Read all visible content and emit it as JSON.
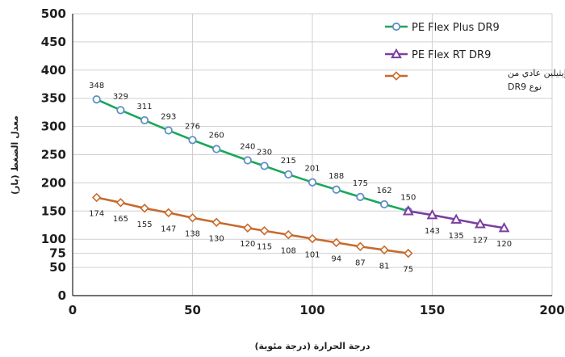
{
  "chart_data": {
    "type": "line",
    "xlabel": "درجة الحرارة (درجة مئوية)",
    "ylabel": "معدل الضغط (بار)",
    "xlim": [
      0,
      200
    ],
    "ylim": [
      0,
      500
    ],
    "xticks": [
      0,
      50,
      100,
      150,
      200
    ],
    "yticks": [
      0,
      50,
      75,
      100,
      150,
      200,
      250,
      300,
      350,
      400,
      450,
      500
    ],
    "grid": true,
    "legend_position": "top-right",
    "series": [
      {
        "name": "PE Flex Plus DR9",
        "color": "#1aa75a",
        "marker": "circle",
        "marker_color": "#5f8fc6",
        "x": [
          10,
          20,
          30,
          40,
          50,
          60,
          73,
          80,
          90,
          100,
          110,
          120,
          130,
          140
        ],
        "y": [
          348,
          329,
          311,
          293,
          276,
          260,
          240,
          230,
          215,
          201,
          188,
          175,
          162,
          150
        ],
        "labels": [
          "348",
          "329",
          "311",
          "293",
          "276",
          "260",
          "240",
          "230",
          "215",
          "201",
          "188",
          "175",
          "162",
          "150"
        ]
      },
      {
        "name": "PE Flex RT DR9",
        "color": "#7b3fa0",
        "marker": "triangle",
        "marker_color": "#7b3fa0",
        "x": [
          140,
          150,
          160,
          170,
          180
        ],
        "y": [
          150,
          143,
          135,
          127,
          120
        ],
        "labels": [
          "",
          "143",
          "135",
          "127",
          "120"
        ]
      },
      {
        "name_lines": [
          "أنبوب بولي إيثيلين عادي من",
          "نوع DR9"
        ],
        "color": "#c8692b",
        "marker": "diamond",
        "marker_color": "#c8692b",
        "x": [
          10,
          20,
          30,
          40,
          50,
          60,
          73,
          80,
          90,
          100,
          110,
          120,
          130,
          140
        ],
        "y": [
          174,
          165,
          155,
          147,
          138,
          130,
          120,
          115,
          108,
          101,
          94,
          87,
          81,
          75
        ],
        "labels": [
          "174",
          "165",
          "155",
          "147",
          "138",
          "130",
          "120",
          "115",
          "108",
          "101",
          "94",
          "87",
          "81",
          "75"
        ]
      }
    ]
  }
}
